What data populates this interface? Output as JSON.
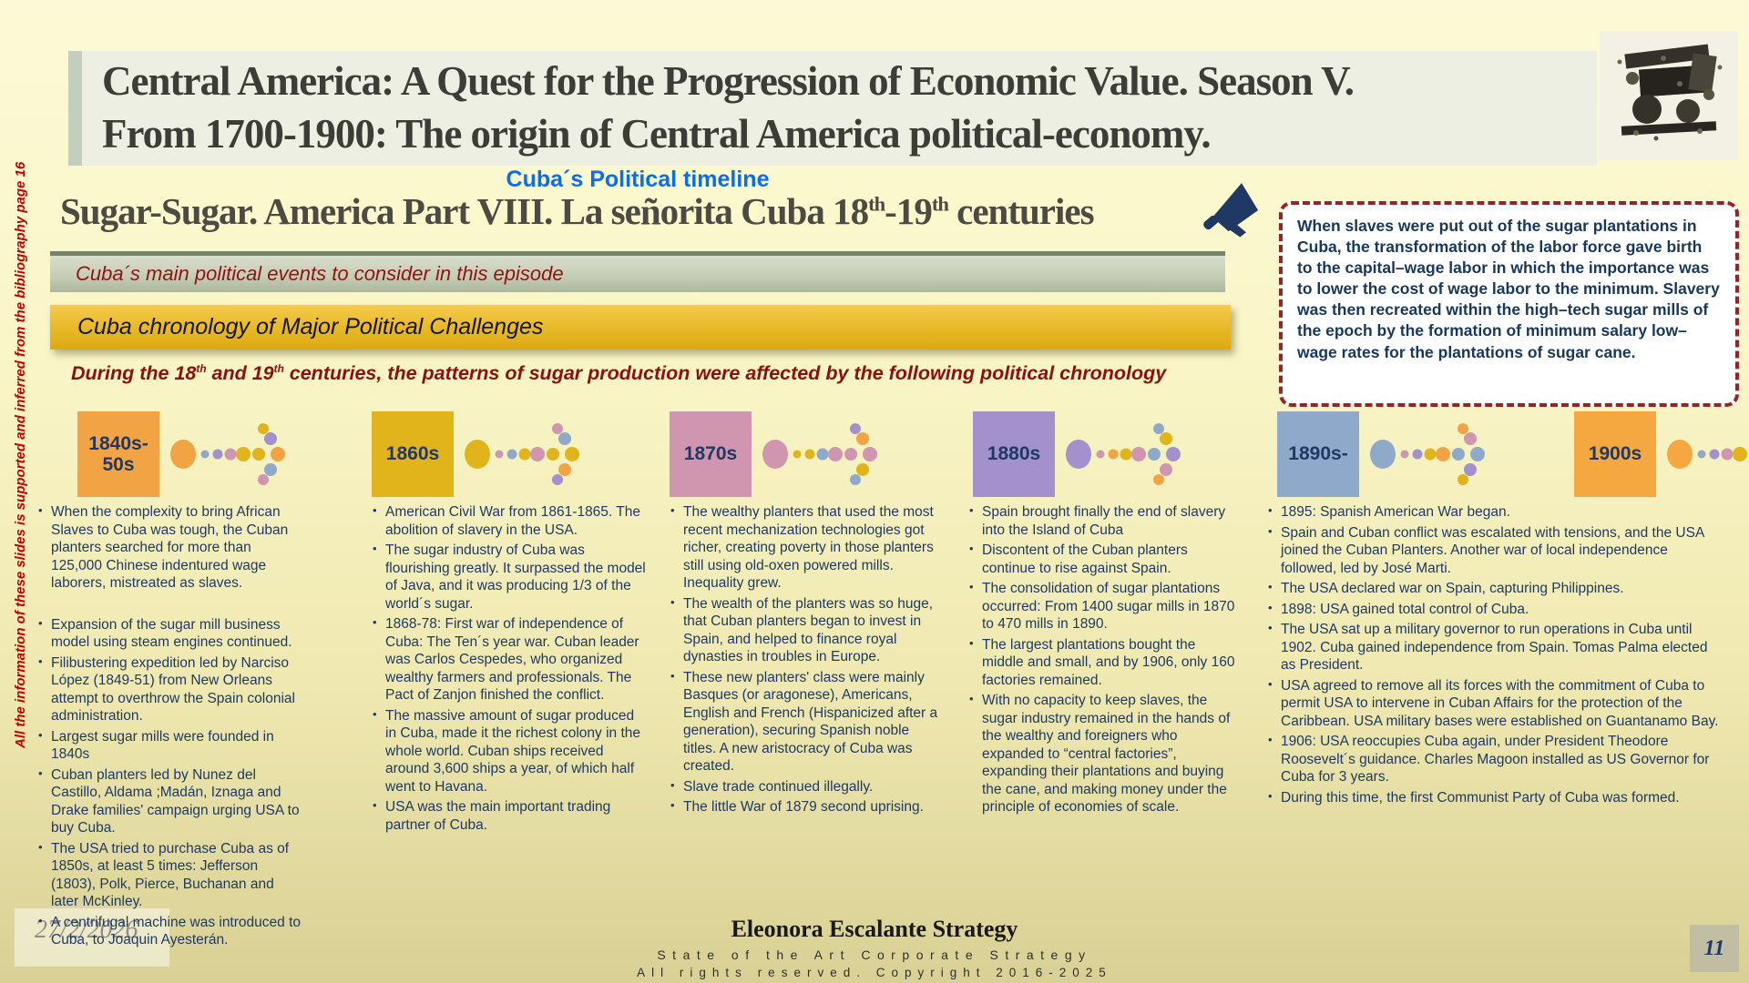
{
  "slide": {
    "title_line1": "Central America:  A Quest for the Progression of Economic Value. Season V.",
    "title_line2": "From 1700-1900: The origin of Central America political-economy.",
    "subtitle": "Cuba´s Political timeline",
    "heading_parts": [
      "Sugar-Sugar. America Part VIII. La señorita Cuba 18",
      "th",
      "-19",
      "th",
      " centuries"
    ],
    "green_banner": "Cuba´s main political events to consider in this episode",
    "gold_banner": "Cuba  chronology of Major Political Challenges",
    "intro_parts": [
      "During the 18",
      "th",
      " and 19",
      "th",
      " centuries, the patterns of sugar production were affected by the following political chronology"
    ],
    "side_note": "All the information of these slides is supported and inferred from the bibliography page 16",
    "callout_text": "When slaves were put out of the sugar plantations in Cuba, the transformation of the labor force gave birth to the capital–wage labor in which the importance was to lower the cost of wage labor to the minimum. Slavery was then recreated within the high–tech sugar mills of the epoch by the formation of minimum salary low–wage rates for the plantations of sugar cane.",
    "watermark_date": "27/2/2026",
    "page_number": "11",
    "footer_brand": "Eleonora Escalante Strategy",
    "footer_line2": "State of the Art Corporate Strategy",
    "footer_line3": "All rights reserved. Copyright 2016-2025",
    "icons": {
      "megaphone": "megaphone-icon",
      "machine": "vintage-machine-etching"
    }
  },
  "palette": {
    "orange": "#F2A444",
    "gold": "#E2B41C",
    "pink": "#D096B0",
    "purple": "#A291CD",
    "blue": "#8FA9CB",
    "navy": "#1F3864",
    "red": "#C00000"
  },
  "timeline": {
    "stations": [
      {
        "label": "1840s-50s",
        "color": "#F2A444",
        "dots": [
          "#8FA9CB",
          "#A291CD",
          "#D096B0",
          "#E2B41C",
          "#E2B41C",
          "#A291CD",
          "#F2A444",
          "#8FA9CB",
          "#D096B0",
          "#E2B41C"
        ]
      },
      {
        "label": "1860s",
        "color": "#E2B41C",
        "dots": [
          "#D096B0",
          "#8FA9CB",
          "#E2B41C",
          "#D096B0",
          "#D096B0",
          "#8FA9CB",
          "#E2B41C",
          "#F2A444",
          "#A291CD",
          "#E2B41C"
        ]
      },
      {
        "label": "1870s",
        "color": "#D096B0",
        "dots": [
          "#E2B41C",
          "#E2B41C",
          "#8FA9CB",
          "#D096B0",
          "#A291CD",
          "#F2A444",
          "#D096B0",
          "#E2B41C",
          "#8FA9CB",
          "#D096B0"
        ]
      },
      {
        "label": "1880s",
        "color": "#A291CD",
        "dots": [
          "#D096B0",
          "#F2A444",
          "#E2B41C",
          "#D096B0",
          "#8FA9CB",
          "#E2B41C",
          "#A291CD",
          "#D096B0",
          "#F2A444",
          "#8FA9CB"
        ]
      },
      {
        "label": "1890s-",
        "color": "#8FA9CB",
        "dots": [
          "#D096B0",
          "#A291CD",
          "#E2B41C",
          "#F2A444",
          "#F2A444",
          "#D096B0",
          "#8FA9CB",
          "#A291CD",
          "#E2B41C",
          "#8FA9CB"
        ]
      },
      {
        "label": "1900s",
        "color": "#F5A83F",
        "dots": [
          "#8FA9CB",
          "#A291CD",
          "#D096B0",
          "#E2B41C",
          "#F2A444",
          "#8FA9CB",
          "#A291CD",
          "#D096B0",
          "#E2B41C",
          "#8FA9CB"
        ]
      }
    ]
  },
  "columns": [
    {
      "decade": "1840s-50s",
      "groups": [
        [
          "When the complexity to bring African Slaves to Cuba was tough, the Cuban planters  searched  for more than 125,000 Chinese indentured wage laborers, mistreated as slaves."
        ],
        [
          "Expansion of the sugar mill business model using steam engines continued.",
          "Filibustering expedition led by Narciso López (1849-51) from New Orleans attempt to overthrow the Spain colonial administration.",
          "Largest sugar mills were founded in 1840s",
          "Cuban planters led by Nunez del Castillo, Aldama ;Madán, Iznaga and Drake families' campaign  urging USA to buy Cuba.",
          "The USA tried to purchase Cuba as of 1850s, at least 5 times: Jefferson (1803), Polk, Pierce, Buchanan and later McKinley.",
          "A centrifugal machine was introduced to Cuba, to Joaquin Ayesterán."
        ]
      ]
    },
    {
      "decade": "1860s",
      "groups": [
        [
          "American Civil War from 1861-1865. The abolition of slavery in the USA.",
          "The sugar industry of Cuba was flourishing greatly. It surpassed the model of Java, and it was producing 1/3 of the world´s sugar.",
          "1868-78: First war of independence of Cuba: The Ten´s year war. Cuban leader was Carlos Cespedes, who organized wealthy farmers and professionals. The Pact of Zanjon finished the conflict.",
          "The massive amount of sugar produced in Cuba, made it the richest colony in the whole world. Cuban ships received around 3,600 ships a year, of which half went to Havana.",
          "USA was the main important trading partner of Cuba."
        ]
      ]
    },
    {
      "decade": "1870s",
      "groups": [
        [
          "The wealthy planters that used the most recent mechanization technologies got richer, creating poverty in those planters still using old-oxen powered mills. Inequality grew.",
          "The wealth of the planters was so huge, that Cuban planters began to invest in Spain, and helped to finance royal dynasties in troubles in Europe.",
          "These new planters' class were mainly Basques (or aragonese), Americans, English and French (Hispanicized after a generation), securing Spanish noble titles. A new aristocracy of Cuba was created.",
          "Slave trade continued illegally.",
          "The little War of 1879 second uprising."
        ]
      ]
    },
    {
      "decade": "1880s",
      "groups": [
        [
          "Spain  brought finally the end of slavery into the Island of Cuba",
          "Discontent of the Cuban planters continue to rise against Spain.",
          "The consolidation of sugar plantations occurred: From 1400 sugar mills in 1870 to 470 mills in 1890.",
          "The largest plantations bought the middle and small, and by 1906, only 160 factories remained.",
          "With no capacity to keep slaves, the sugar industry remained in the hands of the wealthy and foreigners who expanded to “central factories”, expanding their plantations and buying the cane, and making money under the principle of  economies of scale."
        ]
      ]
    },
    {
      "decade": "1890s-1900s",
      "groups": [
        [
          "1895: Spanish American War began.",
          "Spain and Cuban conflict was escalated  with tensions, and the USA joined the Cuban Planters. Another war of local independence followed, led by José Marti.",
          "The USA declared war on Spain, capturing Philippines.",
          "1898: USA gained total control of Cuba.",
          "The USA sat up a military governor to run operations in Cuba until 1902. Cuba gained independence from Spain. Tomas Palma elected as President.",
          "USA agreed to remove all its forces with the commitment of Cuba to permit USA to intervene in Cuban Affairs for the protection of the Caribbean. USA military bases were established on Guantanamo Bay.",
          "1906: USA reoccupies Cuba again, under President Theodore Roosevelt´s guidance. Charles Magoon installed as US Governor for Cuba for 3 years.",
          "During this time, the first Communist Party of Cuba was formed."
        ]
      ]
    }
  ]
}
